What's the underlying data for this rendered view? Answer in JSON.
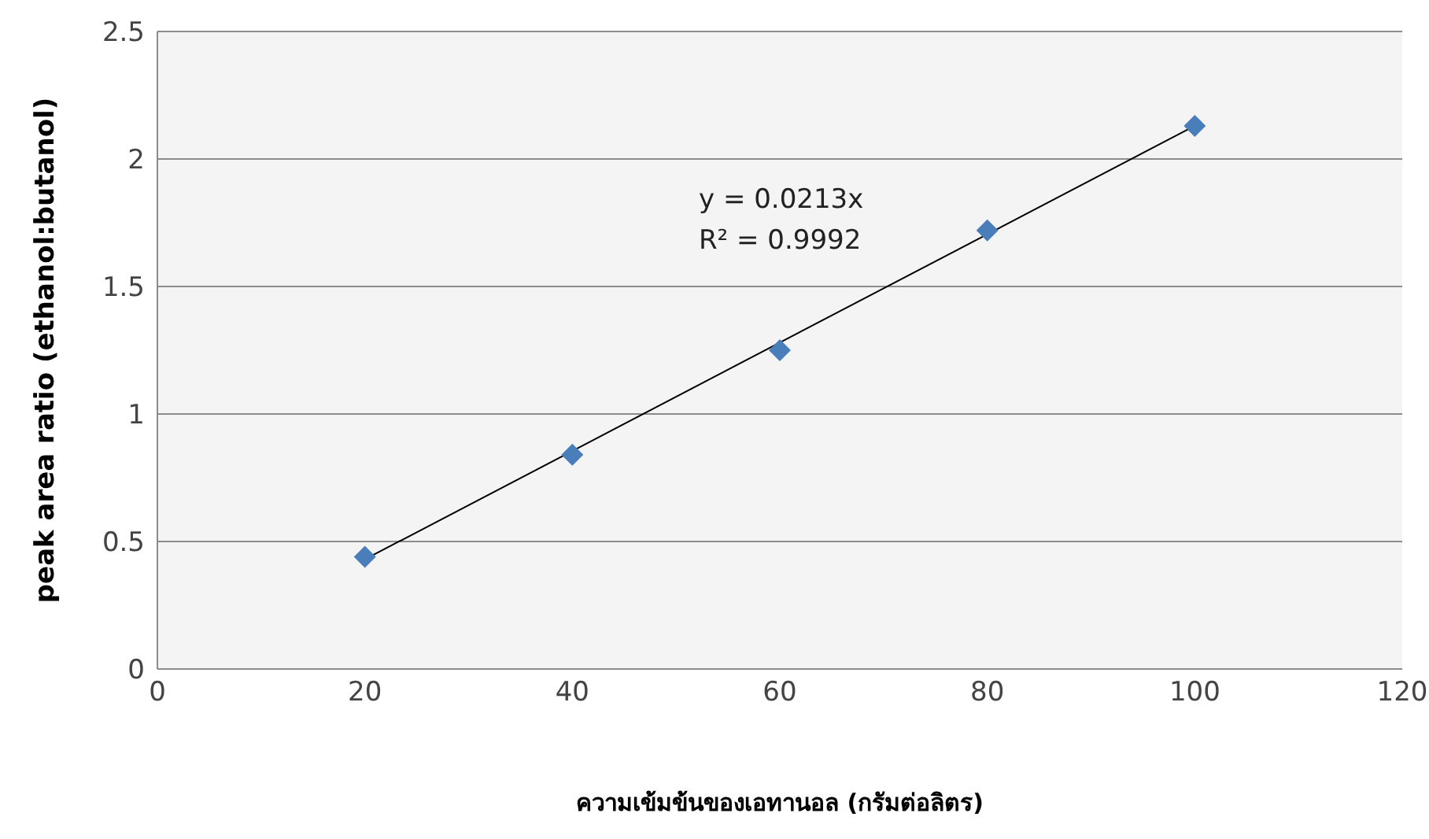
{
  "chart_data": {
    "type": "scatter",
    "xlabel": "ความเข้มข้นของเอทานอล (กรัมต่อลิตร)",
    "ylabel": "peak area ratio (ethanol:butanol)",
    "x": [
      20,
      40,
      60,
      80,
      100
    ],
    "series": [
      {
        "color": "#4a7ebb",
        "marker": "diamond",
        "values": [
          0.44,
          0.84,
          1.25,
          1.72,
          2.13
        ]
      },
      {
        "type": "line",
        "marker": "none",
        "color": "#000000",
        "x": [
          20,
          100
        ],
        "values": [
          0.43,
          2.13
        ]
      }
    ],
    "annotations": [
      "y = 0.0213x",
      "R² = 0.9992"
    ],
    "xlim": [
      0,
      120
    ],
    "xticks": [
      0,
      20,
      40,
      60,
      80,
      100,
      120
    ],
    "ylim": [
      0,
      2.5
    ],
    "yticks": [
      0,
      0.5,
      1,
      1.5,
      2,
      2.5
    ],
    "grid": "y",
    "legend": false
  }
}
